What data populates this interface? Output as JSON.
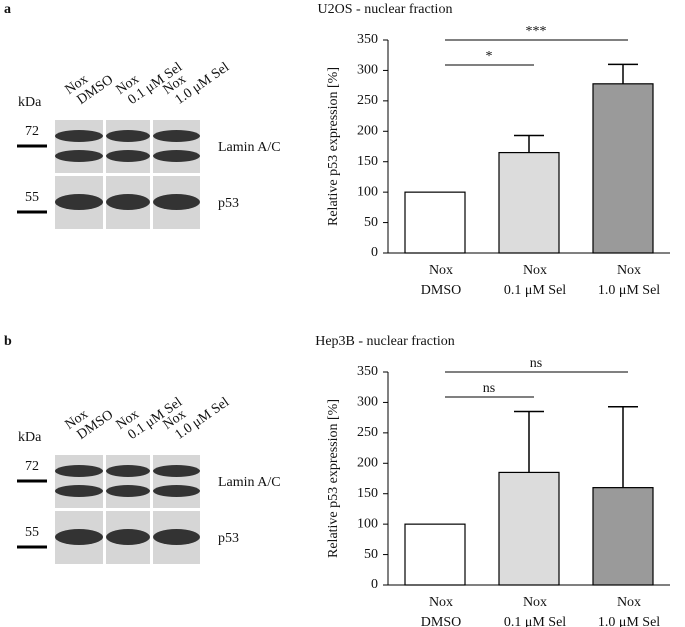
{
  "chart_data": [
    {
      "type": "bar",
      "panel_label": "a",
      "title": "U2OS - nuclear fraction",
      "ylabel": "Relative p53 expression [%]",
      "categories": [
        [
          "Nox",
          "DMSO"
        ],
        [
          "Nox",
          "0.1 μM Sel"
        ],
        [
          "Nox",
          "1.0 μM Sel"
        ]
      ],
      "values": [
        100,
        165,
        278
      ],
      "errors": [
        null,
        28,
        32
      ],
      "colors": [
        "#ffffff",
        "#dcdcdc",
        "#9a9a9a"
      ],
      "ylim": [
        0,
        350
      ],
      "yticks": [
        0,
        50,
        100,
        150,
        200,
        250,
        300,
        350
      ],
      "significance": [
        {
          "from": 0,
          "to": 1,
          "label": "*"
        },
        {
          "from": 0,
          "to": 2,
          "label": "***"
        }
      ],
      "blot": {
        "unit": "kDa",
        "markers": [
          72,
          55
        ],
        "lanes": [
          [
            "Nox",
            "DMSO"
          ],
          [
            "Nox",
            "0.1 μM Sel"
          ],
          [
            "Nox",
            "1.0 μM Sel"
          ]
        ],
        "proteins": [
          "Lamin A/C",
          "p53"
        ]
      }
    },
    {
      "type": "bar",
      "panel_label": "b",
      "title": "Hep3B - nuclear fraction",
      "ylabel": "Relative p53 expression [%]",
      "categories": [
        [
          "Nox",
          "DMSO"
        ],
        [
          "Nox",
          "0.1 μM Sel"
        ],
        [
          "Nox",
          "1.0 μM Sel"
        ]
      ],
      "values": [
        100,
        185,
        160
      ],
      "errors": [
        null,
        100,
        133
      ],
      "colors": [
        "#ffffff",
        "#dcdcdc",
        "#9a9a9a"
      ],
      "ylim": [
        0,
        350
      ],
      "yticks": [
        0,
        50,
        100,
        150,
        200,
        250,
        300,
        350
      ],
      "significance": [
        {
          "from": 0,
          "to": 1,
          "label": "ns"
        },
        {
          "from": 0,
          "to": 2,
          "label": "ns"
        }
      ],
      "blot": {
        "unit": "kDa",
        "markers": [
          72,
          55
        ],
        "lanes": [
          [
            "Nox",
            "DMSO"
          ],
          [
            "Nox",
            "0.1 μM Sel"
          ],
          [
            "Nox",
            "1.0 μM Sel"
          ]
        ],
        "proteins": [
          "Lamin A/C",
          "p53"
        ]
      }
    }
  ]
}
